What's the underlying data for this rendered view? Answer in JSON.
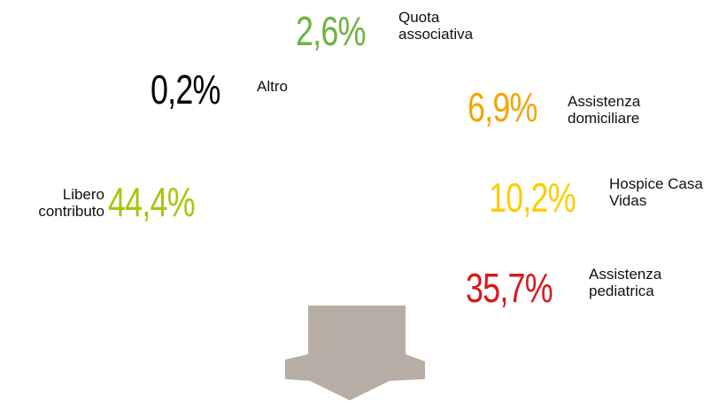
{
  "chart_data": {
    "type": "pie",
    "categories": [
      "Altro",
      "Quota associativa",
      "Assistenza domiciliare",
      "Hospice Casa Vidas",
      "Assistenza pediatrica",
      "Libero contributo"
    ],
    "values": [
      0.2,
      2.6,
      6.9,
      10.2,
      35.7,
      44.4
    ],
    "value_labels": [
      "0,2%",
      "2,6%",
      "6,9%",
      "10,2%",
      "35,7%",
      "44,4%"
    ],
    "colors": [
      "#000000",
      "#6cb33f",
      "#f2a500",
      "#ffcc00",
      "#d7191c",
      "#a9c40f"
    ]
  }
}
